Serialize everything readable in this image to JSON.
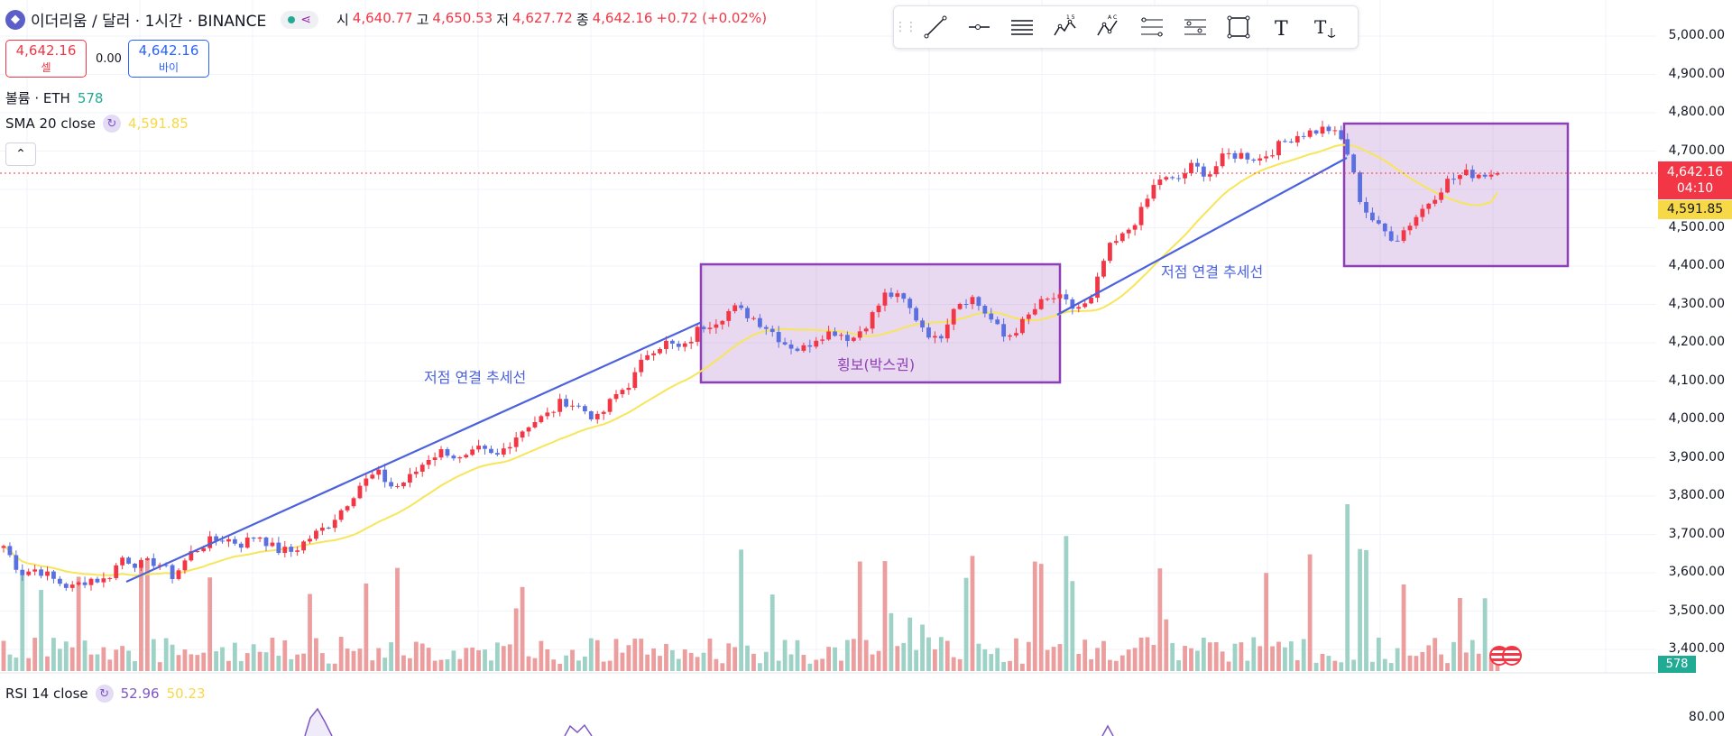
{
  "header": {
    "symbol": "이더리움 / 달러 · 1시간 · BINANCE",
    "open_label": "시",
    "open": "4,640.77",
    "high_label": "고",
    "high": "4,650.53",
    "low_label": "저",
    "low": "4,627.72",
    "close_label": "종",
    "close": "4,642.16",
    "change": "+0.72 (+0.02%)"
  },
  "trade": {
    "sell_price": "4,642.16",
    "sell_label": "셀",
    "spread": "0.00",
    "buy_price": "4,642.16",
    "buy_label": "바이"
  },
  "volume_indicator": {
    "label": "볼륨 · ETH",
    "value": "578"
  },
  "sma_indicator": {
    "label": "SMA 20 close",
    "value": "4,591.85"
  },
  "rsi_indicator": {
    "label": "RSI 14 close",
    "value1": "52.96",
    "value2": "50.23"
  },
  "toolbar": {
    "tools": [
      "trend-line-icon",
      "horizontal-ray-icon",
      "parallel-channel-icon",
      "elliott-wave-icon",
      "abc-pattern-icon",
      "fib-retracement-icon",
      "fib-extension-icon",
      "rectangle-icon",
      "text-icon",
      "anchored-text-icon"
    ]
  },
  "price_tags": {
    "last_price": "4,642.16",
    "countdown": "04:10",
    "sma_value": "4,591.85",
    "volume_value": "578"
  },
  "rsi_axis": {
    "label": "80.00"
  },
  "annotations": {
    "trendline1_label": "저점 연결 추세선",
    "box_label": "횡보(박스권)",
    "trendline2_label": "저점 연결 추세선"
  },
  "colors": {
    "up": "#22ab94",
    "down": "#f23645",
    "candle_up": "#f23645",
    "candle_down": "#5a6fe0",
    "sma": "#f7e55a",
    "trendline": "#4c62dd",
    "box": "#8e3fb5",
    "volume_up": "#9fd2c6",
    "volume_down": "#ec9e9e",
    "rsi": "#7e57c2"
  },
  "chart_data": {
    "type": "candlestick",
    "symbol": "ETH/USD",
    "interval": "1h",
    "y_axis": {
      "range": [
        3340,
        5020
      ],
      "ticks": [
        3400,
        3500,
        3600,
        3700,
        3800,
        3900,
        4000,
        4100,
        4200,
        4300,
        4400,
        4500,
        4600,
        4700,
        4800,
        4900,
        5000
      ]
    },
    "price_anchors": [
      3670,
      3600,
      3610,
      3580,
      3560,
      3585,
      3580,
      3640,
      3620,
      3630,
      3590,
      3650,
      3680,
      3690,
      3675,
      3700,
      3660,
      3655,
      3690,
      3720,
      3770,
      3830,
      3860,
      3820,
      3850,
      3900,
      3920,
      3890,
      3920,
      3900,
      3950,
      3990,
      4010,
      4050,
      4030,
      4000,
      4060,
      4100,
      4180,
      4200,
      4180,
      4240,
      4260,
      4290,
      4270,
      4240,
      4200,
      4180,
      4220,
      4230,
      4210,
      4260,
      4330,
      4310,
      4250,
      4200,
      4300,
      4320,
      4270,
      4210,
      4250,
      4300,
      4320,
      4290,
      4300,
      4440,
      4480,
      4540,
      4630,
      4620,
      4660,
      4640,
      4690,
      4690,
      4680,
      4710,
      4740,
      4750,
      4760,
      4720,
      4560,
      4500,
      4470,
      4520,
      4570,
      4620,
      4640,
      4641,
      4642
    ],
    "last_close": 4642.16,
    "sma20_last": 4591.85,
    "volume_last": 578,
    "rsi_axis_tick": 80
  }
}
